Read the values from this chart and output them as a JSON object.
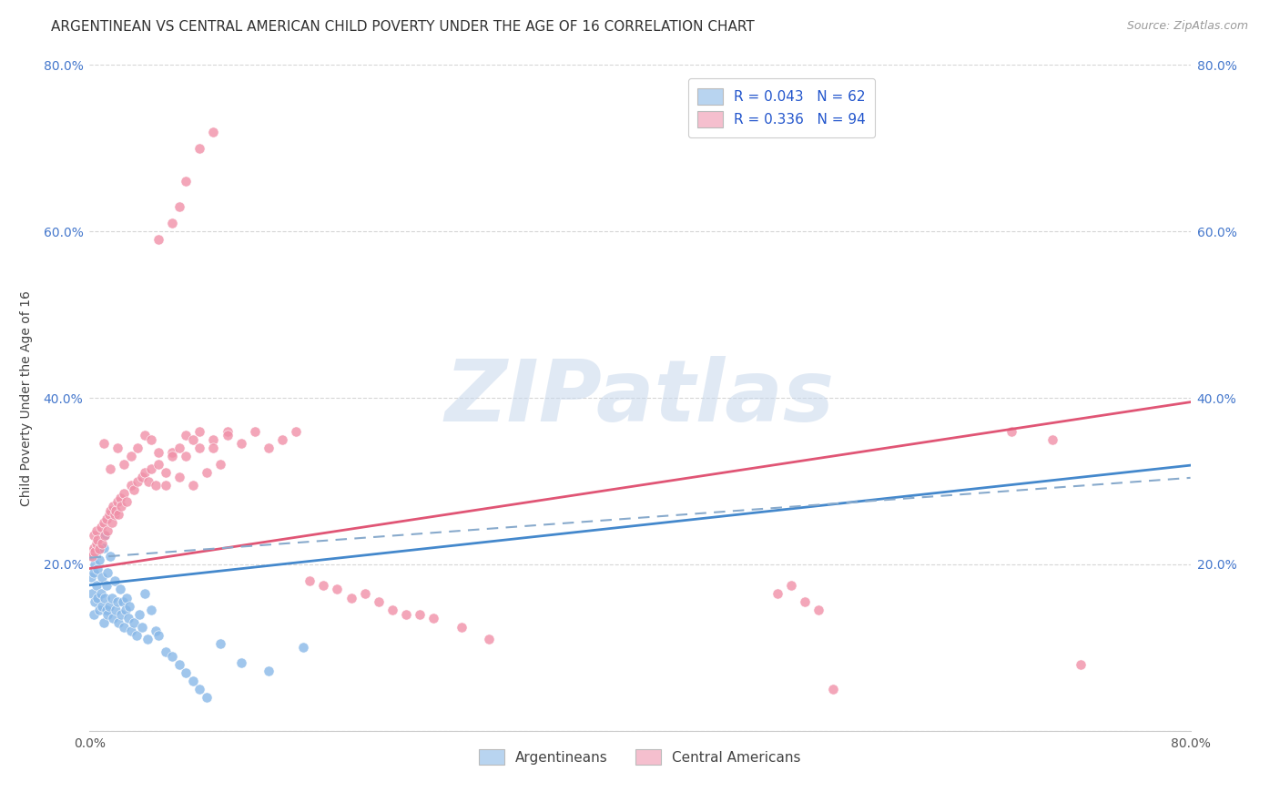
{
  "title": "ARGENTINEAN VS CENTRAL AMERICAN CHILD POVERTY UNDER THE AGE OF 16 CORRELATION CHART",
  "source": "Source: ZipAtlas.com",
  "ylabel": "Child Poverty Under the Age of 16",
  "xlim": [
    0.0,
    0.8
  ],
  "ylim": [
    0.0,
    0.8
  ],
  "xtick_positions": [
    0.0,
    0.1,
    0.2,
    0.3,
    0.4,
    0.5,
    0.6,
    0.7,
    0.8
  ],
  "xticklabels": [
    "0.0%",
    "",
    "",
    "",
    "",
    "",
    "",
    "",
    "80.0%"
  ],
  "ytick_positions": [
    0.0,
    0.2,
    0.4,
    0.6,
    0.8
  ],
  "yticklabels_left": [
    "",
    "20.0%",
    "40.0%",
    "60.0%",
    "80.0%"
  ],
  "yticklabels_right": [
    "",
    "20.0%",
    "40.0%",
    "60.0%",
    "80.0%"
  ],
  "legend1_label": "R = 0.043   N = 62",
  "legend2_label": "R = 0.336   N = 94",
  "legend1_patch_color": "#b8d4f0",
  "legend2_patch_color": "#f5bfce",
  "scatter1_color": "#88b8e8",
  "scatter2_color": "#f090a8",
  "line1_color": "#4488cc",
  "line2_color": "#e05575",
  "dashed_line_color": "#88aacc",
  "watermark_text": "ZIPatlas",
  "watermark_color": "#c8d8ec",
  "title_fontsize": 11,
  "axis_label_fontsize": 10,
  "tick_fontsize": 10,
  "legend_fontsize": 11,
  "background_color": "#ffffff",
  "grid_color": "#cccccc",
  "argentinean_x": [
    0.001,
    0.002,
    0.002,
    0.003,
    0.003,
    0.004,
    0.004,
    0.005,
    0.005,
    0.006,
    0.006,
    0.007,
    0.007,
    0.008,
    0.008,
    0.009,
    0.009,
    0.01,
    0.01,
    0.011,
    0.011,
    0.012,
    0.012,
    0.013,
    0.013,
    0.014,
    0.015,
    0.016,
    0.017,
    0.018,
    0.019,
    0.02,
    0.021,
    0.022,
    0.023,
    0.024,
    0.025,
    0.026,
    0.027,
    0.028,
    0.029,
    0.03,
    0.032,
    0.034,
    0.036,
    0.038,
    0.04,
    0.042,
    0.045,
    0.048,
    0.05,
    0.055,
    0.06,
    0.065,
    0.07,
    0.075,
    0.08,
    0.085,
    0.095,
    0.11,
    0.13,
    0.155
  ],
  "argentinean_y": [
    0.185,
    0.165,
    0.21,
    0.14,
    0.19,
    0.155,
    0.2,
    0.175,
    0.215,
    0.16,
    0.195,
    0.145,
    0.205,
    0.165,
    0.22,
    0.15,
    0.185,
    0.13,
    0.22,
    0.16,
    0.235,
    0.145,
    0.175,
    0.14,
    0.19,
    0.15,
    0.21,
    0.16,
    0.135,
    0.18,
    0.145,
    0.155,
    0.13,
    0.17,
    0.14,
    0.155,
    0.125,
    0.145,
    0.16,
    0.135,
    0.15,
    0.12,
    0.13,
    0.115,
    0.14,
    0.125,
    0.165,
    0.11,
    0.145,
    0.12,
    0.115,
    0.095,
    0.09,
    0.08,
    0.07,
    0.06,
    0.05,
    0.04,
    0.105,
    0.082,
    0.072,
    0.1
  ],
  "central_american_x": [
    0.001,
    0.002,
    0.003,
    0.003,
    0.004,
    0.005,
    0.005,
    0.006,
    0.007,
    0.008,
    0.009,
    0.01,
    0.011,
    0.012,
    0.013,
    0.014,
    0.015,
    0.016,
    0.017,
    0.018,
    0.019,
    0.02,
    0.021,
    0.022,
    0.023,
    0.025,
    0.027,
    0.03,
    0.032,
    0.035,
    0.038,
    0.04,
    0.043,
    0.045,
    0.048,
    0.05,
    0.055,
    0.06,
    0.065,
    0.07,
    0.075,
    0.08,
    0.085,
    0.09,
    0.095,
    0.1,
    0.01,
    0.015,
    0.02,
    0.025,
    0.03,
    0.035,
    0.04,
    0.045,
    0.05,
    0.055,
    0.06,
    0.065,
    0.07,
    0.075,
    0.08,
    0.09,
    0.1,
    0.11,
    0.12,
    0.13,
    0.14,
    0.15,
    0.16,
    0.17,
    0.18,
    0.19,
    0.2,
    0.21,
    0.22,
    0.23,
    0.24,
    0.25,
    0.27,
    0.29,
    0.05,
    0.06,
    0.065,
    0.07,
    0.08,
    0.09,
    0.5,
    0.51,
    0.52,
    0.53,
    0.54,
    0.67,
    0.7,
    0.72
  ],
  "central_american_y": [
    0.215,
    0.21,
    0.22,
    0.235,
    0.215,
    0.225,
    0.24,
    0.23,
    0.218,
    0.245,
    0.225,
    0.25,
    0.235,
    0.255,
    0.24,
    0.26,
    0.265,
    0.25,
    0.27,
    0.26,
    0.265,
    0.275,
    0.26,
    0.28,
    0.27,
    0.285,
    0.275,
    0.295,
    0.29,
    0.3,
    0.305,
    0.31,
    0.3,
    0.315,
    0.295,
    0.32,
    0.295,
    0.335,
    0.305,
    0.33,
    0.295,
    0.34,
    0.31,
    0.35,
    0.32,
    0.36,
    0.345,
    0.315,
    0.34,
    0.32,
    0.33,
    0.34,
    0.355,
    0.35,
    0.335,
    0.31,
    0.33,
    0.34,
    0.355,
    0.35,
    0.36,
    0.34,
    0.355,
    0.345,
    0.36,
    0.34,
    0.35,
    0.36,
    0.18,
    0.175,
    0.17,
    0.16,
    0.165,
    0.155,
    0.145,
    0.14,
    0.14,
    0.135,
    0.125,
    0.11,
    0.59,
    0.61,
    0.63,
    0.66,
    0.7,
    0.72,
    0.165,
    0.175,
    0.155,
    0.145,
    0.05,
    0.36,
    0.35,
    0.08
  ]
}
